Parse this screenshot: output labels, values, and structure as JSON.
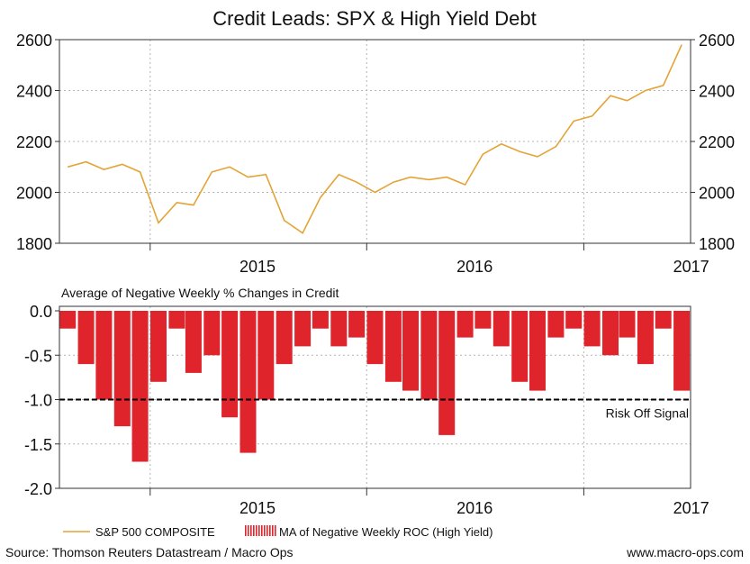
{
  "title": "Credit Leads: SPX & High Yield Debt",
  "colors": {
    "spx_line": "#E3A436",
    "credit_bars": "#E0242B",
    "grid": "#B4B4B4",
    "axis": "#333333",
    "threshold": "#000000"
  },
  "chart_data": [
    {
      "type": "line",
      "title": "Credit Leads: SPX & High Yield Debt",
      "series": [
        {
          "name": "S&P 500 COMPOSITE",
          "x": [
            "2014-08",
            "2014-09",
            "2014-10",
            "2014-11",
            "2014-12",
            "2015-01",
            "2015-02",
            "2015-03",
            "2015-04",
            "2015-05",
            "2015-06",
            "2015-07",
            "2015-08",
            "2015-09",
            "2015-10",
            "2015-11",
            "2015-12",
            "2016-01",
            "2016-02",
            "2016-03",
            "2016-04",
            "2016-05",
            "2016-06",
            "2016-07",
            "2016-08",
            "2016-09",
            "2016-10",
            "2016-11",
            "2016-12",
            "2017-01",
            "2017-02",
            "2017-03",
            "2017-04",
            "2017-05",
            "2017-06"
          ],
          "y": [
            2100,
            2120,
            2090,
            2110,
            2080,
            1880,
            1960,
            1950,
            2080,
            2100,
            2060,
            2070,
            1890,
            1840,
            1980,
            2070,
            2040,
            2000,
            2040,
            2060,
            2050,
            2060,
            2030,
            2150,
            2190,
            2160,
            2140,
            2180,
            2280,
            2300,
            2380,
            2360,
            2400,
            2420,
            2580
          ]
        }
      ],
      "xticks": [
        "2015",
        "2016",
        "2017"
      ],
      "yticks": [
        "1800",
        "2000",
        "2200",
        "2400",
        "2600"
      ],
      "ylim": [
        1800,
        2600
      ],
      "grid": true
    },
    {
      "type": "bar",
      "title": "Average of Negative Weekly % Changes in Credit",
      "series": [
        {
          "name": "MA of Negative Weekly ROC (High Yield)",
          "x": [
            "2014-08",
            "2014-09",
            "2014-10",
            "2014-11",
            "2014-12",
            "2015-01",
            "2015-02",
            "2015-03",
            "2015-04",
            "2015-05",
            "2015-06",
            "2015-07",
            "2015-08",
            "2015-09",
            "2015-10",
            "2015-11",
            "2015-12",
            "2016-01",
            "2016-02",
            "2016-03",
            "2016-04",
            "2016-05",
            "2016-06",
            "2016-07",
            "2016-08",
            "2016-09",
            "2016-10",
            "2016-11",
            "2016-12",
            "2017-01",
            "2017-02",
            "2017-03",
            "2017-04",
            "2017-05",
            "2017-06"
          ],
          "y": [
            -0.2,
            -0.6,
            -1.0,
            -1.3,
            -1.7,
            -0.8,
            -0.2,
            -0.7,
            -0.5,
            -1.2,
            -1.6,
            -1.0,
            -0.6,
            -0.4,
            -0.2,
            -0.4,
            -0.3,
            -0.6,
            -0.8,
            -0.9,
            -1.0,
            -1.4,
            -0.3,
            -0.2,
            -0.4,
            -0.8,
            -0.9,
            -0.3,
            -0.2,
            -0.4,
            -0.5,
            -0.3,
            -0.6,
            -0.2,
            -0.9
          ]
        }
      ],
      "threshold": {
        "value": -1.0,
        "label": "Risk Off Signal"
      },
      "xticks": [
        "2015",
        "2016",
        "2017"
      ],
      "yticks": [
        "0.0",
        "-0.5",
        "-1.0",
        "-1.5",
        "-2.0"
      ],
      "ylim": [
        -2.0,
        0.0
      ],
      "grid": true
    }
  ],
  "legend": {
    "line_label": "S&P 500 COMPOSITE",
    "bar_label": "MA of Negative Weekly ROC (High Yield)"
  },
  "footer": {
    "source": "Source: Thomson Reuters Datastream / Macro Ops",
    "site": "www.macro-ops.com"
  }
}
